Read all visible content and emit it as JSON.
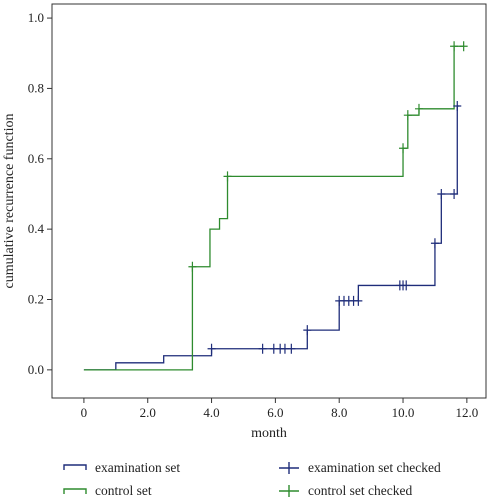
{
  "chart_data": {
    "type": "line",
    "subtype": "step",
    "title": "",
    "xlabel": "month",
    "ylabel": "cumulative recurrence function",
    "xlim": [
      -1,
      12.6
    ],
    "ylim": [
      -0.08,
      1.04
    ],
    "xticks": [
      "0",
      "2.0",
      "4.0",
      "6.0",
      "8.0",
      "10.0",
      "12.0"
    ],
    "xtick_values": [
      0,
      2,
      4,
      6,
      8,
      10,
      12
    ],
    "yticks": [
      "0.0",
      "0.2",
      "0.4",
      "0.6",
      "0.8",
      "1.0"
    ],
    "ytick_values": [
      0,
      0.2,
      0.4,
      0.6,
      0.8,
      1.0
    ],
    "grid": false,
    "legend_position": "bottom",
    "series": [
      {
        "name": "examination set",
        "color": "#1f2d7a",
        "steps": [
          [
            0,
            0
          ],
          [
            1,
            0.02
          ],
          [
            2.5,
            0.04
          ],
          [
            4,
            0.06
          ],
          [
            7,
            0.113
          ],
          [
            8,
            0.196
          ],
          [
            8.6,
            0.24
          ],
          [
            11,
            0.36
          ],
          [
            11.2,
            0.5
          ],
          [
            11.7,
            0.75
          ]
        ],
        "end_x": 11.75
      },
      {
        "name": "control set",
        "color": "#2e8b2e",
        "steps": [
          [
            0,
            0
          ],
          [
            3.4,
            0.293
          ],
          [
            3.95,
            0.4
          ],
          [
            4.25,
            0.43
          ],
          [
            4.5,
            0.55
          ],
          [
            10,
            0.63
          ],
          [
            10.15,
            0.724
          ],
          [
            10.5,
            0.742
          ],
          [
            11.6,
            0.92
          ]
        ],
        "end_x": 11.9
      },
      {
        "name": "examination set checked",
        "color": "#1f2d7a",
        "censored": [
          [
            4,
            0.06
          ],
          [
            5.6,
            0.06
          ],
          [
            5.95,
            0.06
          ],
          [
            6.15,
            0.06
          ],
          [
            6.3,
            0.06
          ],
          [
            6.5,
            0.06
          ],
          [
            7,
            0.113
          ],
          [
            8,
            0.196
          ],
          [
            8.15,
            0.196
          ],
          [
            8.3,
            0.196
          ],
          [
            8.45,
            0.196
          ],
          [
            8.6,
            0.196
          ],
          [
            9.9,
            0.24
          ],
          [
            10.0,
            0.24
          ],
          [
            10.1,
            0.24
          ],
          [
            11,
            0.36
          ],
          [
            11.2,
            0.5
          ],
          [
            11.6,
            0.5
          ],
          [
            11.7,
            0.75
          ]
        ]
      },
      {
        "name": "control set checked",
        "color": "#2e8b2e",
        "censored": [
          [
            3.4,
            0.293
          ],
          [
            4.5,
            0.55
          ],
          [
            10,
            0.63
          ],
          [
            10.15,
            0.724
          ],
          [
            10.5,
            0.742
          ],
          [
            11.6,
            0.92
          ],
          [
            11.9,
            0.92
          ]
        ]
      }
    ]
  },
  "legend": {
    "examination": "examination set",
    "control": "control set",
    "examination_checked": "examination set checked",
    "control_checked": "control set checked"
  }
}
